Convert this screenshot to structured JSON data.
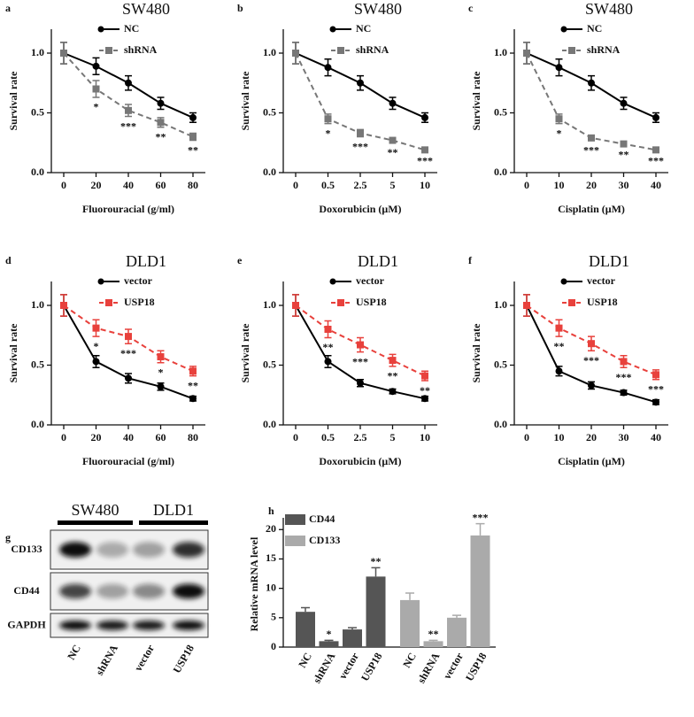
{
  "chart_data": [
    {
      "type": "line",
      "label": "a",
      "title": "SW480",
      "xlabel": "Fluorouracial (g/ml)",
      "ylabel": "Survival rate",
      "categories": [
        "0",
        "20",
        "40",
        "60",
        "80"
      ],
      "ylim": [
        0,
        1.2
      ],
      "yticks": [
        {
          "value": 0,
          "label": "0.0"
        },
        {
          "value": 0.5,
          "label": "0.5"
        },
        {
          "value": 1,
          "label": "1.0"
        }
      ],
      "series": [
        {
          "name": "NC",
          "color": "#000000",
          "marker": "circle",
          "dashed": false,
          "values": [
            1.0,
            0.89,
            0.75,
            0.58,
            0.46
          ],
          "errors": [
            0.09,
            0.07,
            0.06,
            0.05,
            0.04
          ]
        },
        {
          "name": "shRNA",
          "color": "#777777",
          "marker": "square",
          "dashed": true,
          "values": [
            1.0,
            0.7,
            0.52,
            0.42,
            0.3
          ],
          "errors": [
            0.09,
            0.07,
            0.05,
            0.04,
            0.03
          ],
          "significance": [
            null,
            "*",
            "***",
            "**",
            "**"
          ]
        }
      ]
    },
    {
      "type": "line",
      "label": "b",
      "title": "SW480",
      "xlabel": "Doxorubicin (μM)",
      "ylabel": "Survival rate",
      "categories": [
        "0",
        "0.5",
        "2.5",
        "5",
        "10"
      ],
      "ylim": [
        0,
        1.2
      ],
      "yticks": [
        {
          "value": 0,
          "label": "0.0"
        },
        {
          "value": 0.5,
          "label": "0.5"
        },
        {
          "value": 1,
          "label": "1.0"
        }
      ],
      "series": [
        {
          "name": "NC",
          "color": "#000000",
          "marker": "circle",
          "dashed": false,
          "values": [
            1.0,
            0.88,
            0.75,
            0.58,
            0.46
          ],
          "errors": [
            0.09,
            0.07,
            0.06,
            0.05,
            0.04
          ]
        },
        {
          "name": "shRNA",
          "color": "#777777",
          "marker": "square",
          "dashed": true,
          "values": [
            1.0,
            0.45,
            0.33,
            0.27,
            0.19
          ],
          "errors": [
            0.09,
            0.04,
            0.03,
            0.02,
            0.01
          ],
          "significance": [
            null,
            "*",
            "***",
            "**",
            "***"
          ]
        }
      ]
    },
    {
      "type": "line",
      "label": "c",
      "title": "SW480",
      "xlabel": "Cisplatin (μM)",
      "ylabel": "Survival rate",
      "categories": [
        "0",
        "10",
        "20",
        "30",
        "40"
      ],
      "ylim": [
        0,
        1.2
      ],
      "yticks": [
        {
          "value": 0,
          "label": "0.0"
        },
        {
          "value": 0.5,
          "label": "0.5"
        },
        {
          "value": 1,
          "label": "1.0"
        }
      ],
      "series": [
        {
          "name": "NC",
          "color": "#000000",
          "marker": "circle",
          "dashed": false,
          "values": [
            1.0,
            0.88,
            0.75,
            0.58,
            0.46
          ],
          "errors": [
            0.09,
            0.07,
            0.06,
            0.05,
            0.04
          ]
        },
        {
          "name": "shRNA",
          "color": "#777777",
          "marker": "square",
          "dashed": true,
          "values": [
            1.0,
            0.45,
            0.29,
            0.24,
            0.19
          ],
          "errors": [
            0.09,
            0.04,
            0.02,
            0.01,
            0.01
          ],
          "significance": [
            null,
            "*",
            "***",
            "**",
            "***"
          ]
        }
      ]
    },
    {
      "type": "line",
      "label": "d",
      "title": "DLD1",
      "xlabel": "Fluorouracial (g/ml)",
      "ylabel": "Survival rate",
      "categories": [
        "0",
        "20",
        "40",
        "60",
        "80"
      ],
      "ylim": [
        0,
        1.2
      ],
      "yticks": [
        {
          "value": 0,
          "label": "0.0"
        },
        {
          "value": 0.5,
          "label": "0.5"
        },
        {
          "value": 1,
          "label": "1.0"
        }
      ],
      "series": [
        {
          "name": "vector",
          "color": "#000000",
          "marker": "circle",
          "dashed": false,
          "values": [
            1.0,
            0.53,
            0.39,
            0.32,
            0.22
          ],
          "errors": [
            0.09,
            0.05,
            0.04,
            0.03,
            0.02
          ]
        },
        {
          "name": "USP18",
          "color": "#e8413c",
          "marker": "square",
          "dashed": true,
          "values": [
            1.0,
            0.81,
            0.74,
            0.57,
            0.45
          ],
          "errors": [
            0.09,
            0.07,
            0.06,
            0.05,
            0.04
          ],
          "significance": [
            null,
            "*",
            "***",
            "*",
            "**"
          ]
        }
      ]
    },
    {
      "type": "line",
      "label": "e",
      "title": "DLD1",
      "xlabel": "Doxorubicin (μM)",
      "ylabel": "Survival rate",
      "categories": [
        "0",
        "0.5",
        "2.5",
        "5",
        "10"
      ],
      "ylim": [
        0,
        1.2
      ],
      "yticks": [
        {
          "value": 0,
          "label": "0.0"
        },
        {
          "value": 0.5,
          "label": "0.5"
        },
        {
          "value": 1,
          "label": "1.0"
        }
      ],
      "series": [
        {
          "name": "vector",
          "color": "#000000",
          "marker": "circle",
          "dashed": false,
          "values": [
            1.0,
            0.53,
            0.35,
            0.28,
            0.22
          ],
          "errors": [
            0.09,
            0.05,
            0.03,
            0.02,
            0.02
          ]
        },
        {
          "name": "USP18",
          "color": "#e8413c",
          "marker": "square",
          "dashed": true,
          "values": [
            1.0,
            0.8,
            0.67,
            0.54,
            0.41
          ],
          "errors": [
            0.09,
            0.07,
            0.06,
            0.05,
            0.04
          ],
          "significance": [
            null,
            "**",
            "***",
            "**",
            "**"
          ]
        }
      ]
    },
    {
      "type": "line",
      "label": "f",
      "title": "DLD1",
      "xlabel": "Cisplatin (μM)",
      "ylabel": "Survival rate",
      "categories": [
        "0",
        "10",
        "20",
        "30",
        "40"
      ],
      "ylim": [
        0,
        1.2
      ],
      "yticks": [
        {
          "value": 0,
          "label": "0.0"
        },
        {
          "value": 0.5,
          "label": "0.5"
        },
        {
          "value": 1,
          "label": "1.0"
        }
      ],
      "series": [
        {
          "name": "vector",
          "color": "#000000",
          "marker": "circle",
          "dashed": false,
          "values": [
            1.0,
            0.45,
            0.33,
            0.27,
            0.19
          ],
          "errors": [
            0.09,
            0.04,
            0.03,
            0.02,
            0.02
          ]
        },
        {
          "name": "USP18",
          "color": "#e8413c",
          "marker": "square",
          "dashed": true,
          "values": [
            1.0,
            0.81,
            0.68,
            0.53,
            0.42
          ],
          "errors": [
            0.09,
            0.07,
            0.06,
            0.05,
            0.04
          ],
          "significance": [
            null,
            "**",
            "***",
            "***",
            "***"
          ]
        }
      ]
    },
    {
      "type": "blot",
      "label": "g",
      "groups": [
        "SW480",
        "DLD1"
      ],
      "rows": [
        "CD133",
        "CD44",
        "GAPDH"
      ],
      "lanes": [
        "NC",
        "shRNA",
        "vector",
        "USP18"
      ]
    },
    {
      "type": "bar",
      "label": "h",
      "ylabel": "Relative mRNA level",
      "categories": [
        "NC",
        "shRNA",
        "vector",
        "USP18"
      ],
      "ylim": [
        0,
        22
      ],
      "yticks": [
        0,
        5,
        10,
        15,
        20
      ],
      "series": [
        {
          "name": "CD44",
          "color": "#555555",
          "values": [
            6,
            1,
            3,
            12
          ],
          "errors": [
            0.7,
            0.15,
            0.3,
            1.5
          ],
          "significance": [
            null,
            "*",
            null,
            "**"
          ]
        },
        {
          "name": "CD133",
          "color": "#aaaaaa",
          "values": [
            8,
            1,
            5,
            19
          ],
          "errors": [
            1.2,
            0.15,
            0.4,
            2
          ],
          "significance": [
            null,
            "**",
            null,
            "***"
          ]
        }
      ]
    }
  ]
}
